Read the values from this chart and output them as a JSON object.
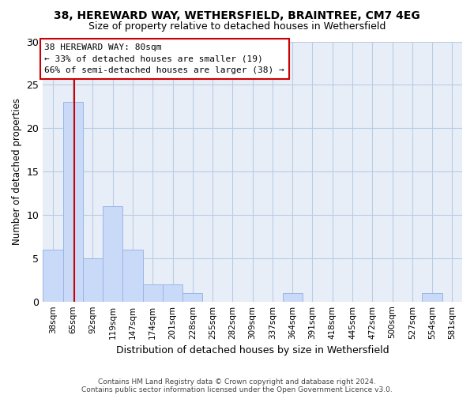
{
  "title": "38, HEREWARD WAY, WETHERSFIELD, BRAINTREE, CM7 4EG",
  "subtitle": "Size of property relative to detached houses in Wethersfield",
  "xlabel": "Distribution of detached houses by size in Wethersfield",
  "ylabel": "Number of detached properties",
  "bar_labels": [
    "38sqm",
    "65sqm",
    "92sqm",
    "119sqm",
    "147sqm",
    "174sqm",
    "201sqm",
    "228sqm",
    "255sqm",
    "282sqm",
    "309sqm",
    "337sqm",
    "364sqm",
    "391sqm",
    "418sqm",
    "445sqm",
    "472sqm",
    "500sqm",
    "527sqm",
    "554sqm",
    "581sqm"
  ],
  "bar_values": [
    6,
    23,
    5,
    11,
    6,
    2,
    2,
    1,
    0,
    0,
    0,
    0,
    1,
    0,
    0,
    0,
    0,
    0,
    0,
    1,
    0
  ],
  "bar_color": "#c9daf8",
  "bar_edge_color": "#9ab5e8",
  "ylim": [
    0,
    30
  ],
  "yticks": [
    0,
    5,
    10,
    15,
    20,
    25,
    30
  ],
  "vline_x": 1.45,
  "vline_color": "#cc0000",
  "annotation_title": "38 HEREWARD WAY: 80sqm",
  "annotation_line1": "← 33% of detached houses are smaller (19)",
  "annotation_line2": "66% of semi-detached houses are larger (38) →",
  "footer1": "Contains HM Land Registry data © Crown copyright and database right 2024.",
  "footer2": "Contains public sector information licensed under the Open Government Licence v3.0.",
  "background_color": "#ffffff",
  "plot_bg_color": "#e8eef8",
  "grid_color": "#b8cce4"
}
